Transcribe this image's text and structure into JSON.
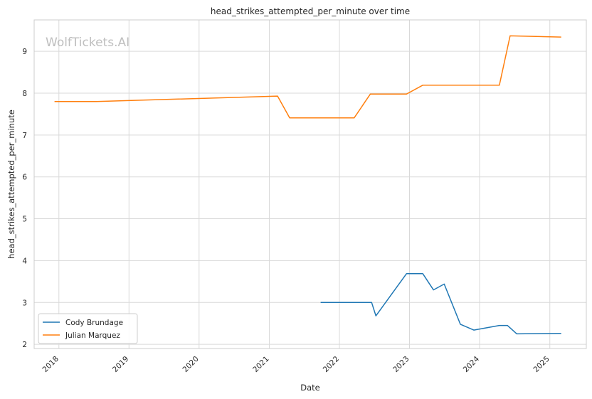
{
  "chart_data": {
    "type": "line",
    "title": "head_strikes_attempted_per_minute over time",
    "xlabel": "Date",
    "ylabel": "head_strikes_attempted_per_minute",
    "watermark": "WolfTickets.AI",
    "x_ticks": [
      "2018",
      "2019",
      "2020",
      "2021",
      "2022",
      "2023",
      "2024",
      "2025"
    ],
    "y_ticks": [
      2,
      3,
      4,
      5,
      6,
      7,
      8,
      9
    ],
    "xlim": [
      "2017-08-25",
      "2025-07-10"
    ],
    "ylim": [
      1.9,
      9.75
    ],
    "grid": true,
    "legend_position": "lower-left",
    "series": [
      {
        "name": "Cody Brundage",
        "color": "#1f77b4",
        "points": [
          [
            "2021-09-25",
            3.0
          ],
          [
            "2022-06-18",
            3.0
          ],
          [
            "2022-07-10",
            2.68
          ],
          [
            "2022-12-17",
            3.69
          ],
          [
            "2023-03-11",
            3.69
          ],
          [
            "2023-05-06",
            3.3
          ],
          [
            "2023-07-01",
            3.44
          ],
          [
            "2023-09-23",
            2.48
          ],
          [
            "2023-12-02",
            2.34
          ],
          [
            "2024-04-13",
            2.45
          ],
          [
            "2024-05-25",
            2.45
          ],
          [
            "2024-07-13",
            2.25
          ],
          [
            "2025-03-01",
            2.26
          ]
        ]
      },
      {
        "name": "Julian Marquez",
        "color": "#ff7f0e",
        "points": [
          [
            "2017-12-09",
            7.8
          ],
          [
            "2018-07-14",
            7.8
          ],
          [
            "2021-02-13",
            7.93
          ],
          [
            "2021-04-17",
            7.41
          ],
          [
            "2022-03-19",
            7.41
          ],
          [
            "2022-06-11",
            7.98
          ],
          [
            "2022-12-17",
            7.98
          ],
          [
            "2023-03-11",
            8.19
          ],
          [
            "2024-04-13",
            8.19
          ],
          [
            "2024-06-08",
            9.37
          ],
          [
            "2025-03-01",
            9.34
          ]
        ]
      }
    ]
  }
}
